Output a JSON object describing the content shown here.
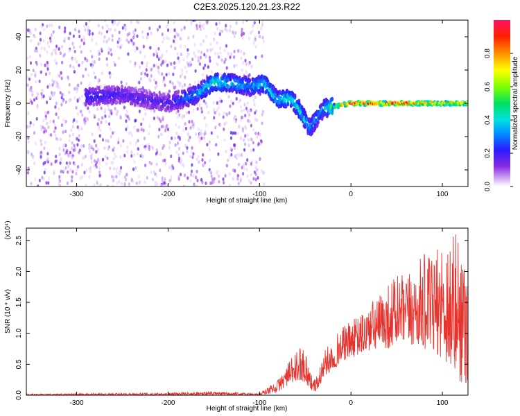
{
  "title": "C2E3.2025.120.21.23.R22",
  "chart_data": [
    {
      "type": "heatmap",
      "panel": "top",
      "xlabel": "Height of straight line (km)",
      "ylabel": "Frequency (Hz)",
      "xlim": [
        -355,
        128
      ],
      "ylim": [
        -50,
        50
      ],
      "xticks": [
        -300,
        -200,
        -100,
        0,
        100
      ],
      "yticks": [
        -40,
        -20,
        0,
        20,
        40
      ],
      "colorbar": {
        "label": "Normalized spectral amplitude",
        "range": [
          0.0,
          1.0
        ],
        "ticks": [
          0.0,
          0.2,
          0.4,
          0.6,
          0.8
        ],
        "tick_labels": [
          "0.0",
          "0.2",
          "0.4",
          "0.6",
          "0.8"
        ]
      },
      "ridge": {
        "description": "dominant frequency track",
        "x": [
          -290,
          -250,
          -200,
          -170,
          -150,
          -130,
          -110,
          -95,
          -80,
          -65,
          -55,
          -45,
          -30,
          0,
          50,
          100,
          128
        ],
        "y": [
          4,
          5,
          0,
          5,
          13,
          12,
          10,
          12,
          2,
          3,
          -5,
          -15,
          -3,
          0,
          0,
          0,
          0
        ],
        "amplitude": [
          0.25,
          0.2,
          0.2,
          0.35,
          0.45,
          0.4,
          0.35,
          0.45,
          0.4,
          0.45,
          0.45,
          0.35,
          0.35,
          1.0,
          1.0,
          0.9,
          0.8
        ]
      },
      "noise_region_x": [
        -355,
        -95
      ]
    },
    {
      "type": "line",
      "panel": "bottom",
      "xlabel": "Height of straight line (km)",
      "ylabel": "SNR (10 * v/v)",
      "scale_label": "(x10⁴)",
      "xlim": [
        -355,
        128
      ],
      "ylim": [
        0,
        2.7
      ],
      "xticks": [
        -300,
        -200,
        -100,
        0,
        100
      ],
      "yticks": [
        0.0,
        0.5,
        1.0,
        1.5,
        2.0,
        2.5
      ],
      "ytick_labels": [
        "0.0",
        "0.5",
        "1.0",
        "1.5",
        "2.0",
        "2.5"
      ],
      "series": [
        {
          "name": "SNR",
          "color": "#e8322c",
          "envelope_x": [
            -355,
            -200,
            -160,
            -100,
            -80,
            -70,
            -60,
            -55,
            -50,
            -45,
            -40,
            -35,
            -30,
            -20,
            -10,
            0,
            10,
            20,
            30,
            40,
            50,
            60,
            70,
            80,
            90,
            100,
            110,
            120,
            128
          ],
          "envelope_low": [
            0.0,
            0.0,
            0.0,
            0.0,
            0.05,
            0.15,
            0.2,
            0.25,
            0.2,
            0.1,
            0.05,
            0.1,
            0.3,
            0.4,
            0.55,
            0.6,
            0.65,
            0.7,
            0.75,
            0.75,
            0.8,
            0.8,
            0.8,
            0.75,
            0.7,
            0.6,
            0.4,
            0.2,
            0.15
          ],
          "envelope_high": [
            0.02,
            0.04,
            0.06,
            0.03,
            0.25,
            0.5,
            0.7,
            0.8,
            0.8,
            0.4,
            0.25,
            0.4,
            0.7,
            0.9,
            1.1,
            1.2,
            1.3,
            1.5,
            1.6,
            1.8,
            2.0,
            1.9,
            2.1,
            2.3,
            2.2,
            2.6,
            2.7,
            2.6,
            2.5
          ]
        }
      ]
    }
  ],
  "colors": {
    "axis": "#000000",
    "trace": "#e8322c"
  }
}
